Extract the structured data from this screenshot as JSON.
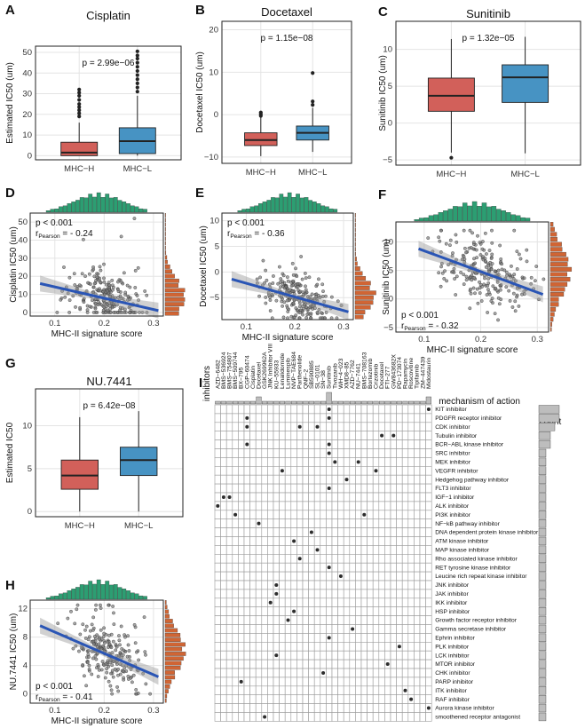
{
  "colors": {
    "h": "#d2605a",
    "l": "#4793c3",
    "hist_top": "#2c9e72",
    "hist_side": "#d06534",
    "fit": "#2a55b5",
    "dot": "#2d2d2d",
    "point": "#808080"
  },
  "panels": {
    "A": {
      "label": "A",
      "title": "Cisplatin",
      "ylabel": "Estimated IC50 (um)",
      "pvalue": "p = 2.99e−06",
      "yticks": [
        "0",
        "10",
        "20",
        "30",
        "40",
        "50"
      ],
      "ymin": -2,
      "ymax": 53,
      "groups": [
        {
          "label": "MHC−H",
          "q1": 0,
          "median": 1.5,
          "q3": 6.5,
          "lo": 0,
          "hi": 16,
          "out": [
            19,
            20.5,
            22,
            23.5,
            25,
            27,
            29,
            30.5,
            32
          ]
        },
        {
          "label": "MHC−L",
          "q1": 1,
          "median": 7,
          "q3": 13.5,
          "lo": 0,
          "hi": 29,
          "out": [
            31,
            33,
            35,
            37,
            39,
            41,
            43,
            45,
            47,
            48.5,
            50.5
          ]
        }
      ]
    },
    "B": {
      "label": "B",
      "title": "Docetaxel",
      "ylabel": "Docetaxel IC50 (um)",
      "pvalue": "p = 1.15e−08",
      "yticks": [
        "−10",
        "0",
        "10",
        "20"
      ],
      "ymin": -11.5,
      "ymax": 22,
      "groups": [
        {
          "label": "MHC−H",
          "q1": -7.3,
          "median": -6,
          "q3": -4.3,
          "lo": -9.8,
          "hi": -0.6,
          "out": [
            -0.3,
            0.1,
            0.5
          ]
        },
        {
          "label": "MHC−L",
          "q1": -6,
          "median": -4.3,
          "q3": -2.7,
          "lo": -8.8,
          "hi": 1.6,
          "out": [
            2.3,
            3.1,
            9.8
          ]
        }
      ]
    },
    "C": {
      "label": "C",
      "title": "Sunitinib",
      "ylabel": "Sunitinib IC50 (um)",
      "pvalue": "p = 1.32e−05",
      "yticks": [
        "−5",
        "0",
        "5",
        "10"
      ],
      "ymin": -5.7,
      "ymax": 13.8,
      "groups": [
        {
          "label": "MHC−H",
          "q1": 1.6,
          "median": 3.7,
          "q3": 6.1,
          "lo": -4,
          "hi": 11.4,
          "out": [
            -4.7
          ]
        },
        {
          "label": "MHC−L",
          "q1": 2.8,
          "median": 6.2,
          "q3": 7.9,
          "lo": -4.1,
          "hi": 11.7,
          "out": []
        }
      ]
    },
    "G": {
      "label": "G",
      "title": "NU.7441",
      "ylabel": "Estimated IC50",
      "pvalue": "p = 6.42e−08",
      "yticks": [
        "0",
        "5",
        "10"
      ],
      "ymin": -0.6,
      "ymax": 14.3,
      "groups": [
        {
          "label": "MHC−H",
          "q1": 2.6,
          "median": 4.2,
          "q3": 6,
          "lo": 0,
          "hi": 11,
          "out": []
        },
        {
          "label": "MHC−L",
          "q1": 4.2,
          "median": 6,
          "q3": 7.5,
          "lo": 0,
          "hi": 11.7,
          "out": []
        }
      ]
    },
    "D": {
      "label": "D",
      "ylabel": "Cisplatin IC50 (um)",
      "xlabel": "MHC-II signature score",
      "stat_p": "p < 0.001",
      "stat_r": "r",
      "stat_r_sub": "Pearson",
      "stat_r_val": " = - 0.24",
      "xticks": [
        "0.1",
        "0.2",
        "0.3"
      ],
      "yticks": [
        "0",
        "10",
        "20",
        "30",
        "40",
        "50"
      ],
      "xmin": 0.05,
      "xmax": 0.32,
      "ymin": -2,
      "ymax": 55,
      "fit": {
        "x0": 0.07,
        "y0": 16,
        "x1": 0.31,
        "y1": 1
      },
      "spread": {
        "mean": 6,
        "sd": 7,
        "min": 0,
        "max": 52
      },
      "stat_corner": "top"
    },
    "E": {
      "label": "E",
      "ylabel": "Docetaxel IC50 (um)",
      "xlabel": "MHC-II signature score",
      "stat_p": "p < 0.001",
      "stat_r": "r",
      "stat_r_sub": "Pearson",
      "stat_r_val": " = - 0.36",
      "xticks": [
        "0.1",
        "0.2",
        "0.3"
      ],
      "yticks": [
        "−5",
        "0",
        "5",
        "10"
      ],
      "xmin": 0.05,
      "xmax": 0.32,
      "ymin": -9.3,
      "ymax": 11.5,
      "fit": {
        "x0": 0.07,
        "y0": -1.4,
        "x1": 0.31,
        "y1": -7.8
      },
      "spread": {
        "mean": 0,
        "sd": 2.2,
        "min": -9,
        "max": 10
      },
      "stat_corner": "top"
    },
    "F": {
      "label": "F",
      "ylabel": "Sunitinib IC50 (um)",
      "xlabel": "MHC-II signature score",
      "stat_p": "p < 0.001",
      "stat_r": "r",
      "stat_r_sub": "Pearson",
      "stat_r_val": " = - 0.32",
      "xticks": [
        "0.1",
        "0.2",
        "0.3"
      ],
      "yticks": [
        "−5",
        "0",
        "5",
        "10"
      ],
      "xmin": 0.05,
      "xmax": 0.32,
      "ymin": -5.8,
      "ymax": 13.5,
      "fit": {
        "x0": 0.09,
        "y0": 8.8,
        "x1": 0.31,
        "y1": 0.8
      },
      "spread": {
        "mean": 0,
        "sd": 3,
        "min": -5,
        "max": 12
      },
      "stat_corner": "bottom"
    },
    "H": {
      "label": "H",
      "ylabel": "NU.7441 IC50 (um)",
      "xlabel": "MHC-II signature score",
      "stat_p": "p < 0.001",
      "stat_r": "r",
      "stat_r_sub": "Pearson",
      "stat_r_val": " = - 0.41",
      "xticks": [
        "0.1",
        "0.2",
        "0.3"
      ],
      "yticks": [
        "0",
        "4",
        "8",
        "12"
      ],
      "xmin": 0.05,
      "xmax": 0.32,
      "ymin": -1.3,
      "ymax": 13.2,
      "fit": {
        "x0": 0.07,
        "y0": 9.6,
        "x1": 0.31,
        "y1": 2.4
      },
      "spread": {
        "mean": 0,
        "sd": 2.1,
        "min": 0,
        "max": 12.5
      },
      "stat_corner": "bottom"
    }
  },
  "panel_I": {
    "label": "I",
    "axis_label": "inhibitors",
    "legend_title": "mechanism of action",
    "count_label": "count",
    "drugs": [
      "AZD−6482",
      "BMS−536924",
      "BMS−754807",
      "BMS−509744",
      "BX−795",
      "CGP−60474",
      "Cisplatin",
      "Docetaxel",
      "GSK269962A",
      "JNK Inhibitor VIII",
      "KU−55933",
      "Lenalidomide",
      "Luminespib",
      "NVP−TAE684",
      "Parthenolide",
      "QNF−2",
      "SB590885",
      "SL−0101",
      "SN−38",
      "Sunitinib",
      "Tivozanib",
      "WH−4−023",
      "XMD8−85",
      "AZD−7762",
      "NU−7441",
      "BMS−708163",
      "Bortezomib",
      "Crizotinib",
      "Docetaxel",
      "FTI−277",
      "GW843682X",
      "PD−173074",
      "Rapamycin",
      "Roscovitine",
      "Tipifarnib",
      "ZM−447439",
      "Midostaurin"
    ],
    "drug_counts": [
      1,
      1,
      1,
      1,
      1,
      1,
      1,
      2,
      1,
      1,
      1,
      1,
      1,
      1,
      1,
      1,
      1,
      1,
      1,
      3,
      1,
      1,
      1,
      1,
      1,
      1,
      1,
      1,
      1,
      1,
      1,
      1,
      1,
      1,
      1,
      1,
      2
    ],
    "mechanisms": [
      "KIT inhibitor",
      "PDGFR receptor inhibitor",
      "CDK inhibitor",
      "Tubulin inhibitor",
      "BCR−ABL kinase inhibitor",
      "SRC inhibitor",
      "MEK inhibitor",
      "VEGFR inhibitor",
      "Hedgehog pathway inhibitor",
      "FLT3 inhibitor",
      "IGF−1 inhibitor",
      "ALK inhibitor",
      "PI3K inhibitor",
      "NF−kB pathway inhibitor",
      "DNA dependent protein kinase inhibitor",
      "ATM kinase inhibitor",
      "MAP kinase inhibitor",
      "Rho associated kinase inhibitor",
      "RET tyrosine kinase inhibitor",
      "Leucine rich repeat kinase inhibitor",
      "JNK inhibitor",
      "JAK inhibitor",
      "IKK inhibitor",
      "HSP inhibitor",
      "Growth factor receptor inhibitor",
      "Gamma secretase inhibitor",
      "Ephrin inhibitor",
      "PLK inhibitor",
      "LCK inhibitor",
      "MTOR inhibitor",
      "CHK inhibitor",
      "PARP inhibitor",
      "ITK inhibitor",
      "RAF inhibitor",
      "Aurora kinase inhibitor",
      "smoothened receptor antagonist"
    ],
    "mech_counts": [
      4,
      4,
      3,
      2,
      2,
      1,
      1,
      1,
      1,
      1,
      1,
      1,
      1,
      1,
      1,
      1,
      1,
      1,
      1,
      1,
      1,
      1,
      1,
      1,
      1,
      1,
      1,
      1,
      1,
      1,
      1,
      1,
      1,
      1,
      1,
      1
    ],
    "links": [
      [
        0,
        36
      ],
      [
        0,
        19
      ],
      [
        1,
        19
      ],
      [
        1,
        5
      ],
      [
        2,
        5
      ],
      [
        2,
        14
      ],
      [
        2,
        17
      ],
      [
        3,
        28
      ],
      [
        3,
        30
      ],
      [
        4,
        5
      ],
      [
        4,
        19
      ],
      [
        5,
        19
      ],
      [
        6,
        20
      ],
      [
        6,
        24
      ],
      [
        7,
        11
      ],
      [
        7,
        27
      ],
      [
        8,
        22
      ],
      [
        9,
        19
      ],
      [
        10,
        1
      ],
      [
        10,
        2
      ],
      [
        11,
        0
      ],
      [
        12,
        3
      ],
      [
        12,
        25
      ],
      [
        13,
        7
      ],
      [
        14,
        16
      ],
      [
        15,
        13
      ],
      [
        16,
        17
      ],
      [
        17,
        14
      ],
      [
        18,
        19
      ],
      [
        19,
        21
      ],
      [
        20,
        10
      ],
      [
        21,
        10
      ],
      [
        22,
        9
      ],
      [
        23,
        13
      ],
      [
        24,
        12
      ],
      [
        25,
        23
      ],
      [
        26,
        19
      ],
      [
        27,
        31
      ],
      [
        28,
        10
      ],
      [
        29,
        29
      ],
      [
        30,
        18
      ],
      [
        31,
        4
      ],
      [
        32,
        32
      ],
      [
        33,
        33
      ],
      [
        34,
        36
      ],
      [
        35,
        8
      ]
    ]
  },
  "chart_data": [
    {
      "type": "box",
      "title": "Cisplatin",
      "ylabel": "Estimated IC50 (um)",
      "categories": [
        "MHC−H",
        "MHC−L"
      ],
      "median": [
        1.5,
        7
      ],
      "q1": [
        0,
        1
      ],
      "q3": [
        6.5,
        13.5
      ],
      "annotation": "p = 2.99e−06"
    },
    {
      "type": "box",
      "title": "Docetaxel",
      "ylabel": "Docetaxel IC50 (um)",
      "categories": [
        "MHC−H",
        "MHC−L"
      ],
      "median": [
        -6,
        -4.3
      ],
      "q1": [
        -7.3,
        -6
      ],
      "q3": [
        -4.3,
        -2.7
      ],
      "annotation": "p = 1.15e−08"
    },
    {
      "type": "box",
      "title": "Sunitinib",
      "ylabel": "Sunitinib IC50 (um)",
      "categories": [
        "MHC−H",
        "MHC−L"
      ],
      "median": [
        3.7,
        6.2
      ],
      "q1": [
        1.6,
        2.8
      ],
      "q3": [
        6.1,
        7.9
      ],
      "annotation": "p = 1.32e−05"
    },
    {
      "type": "scatter",
      "ylabel": "Cisplatin IC50 (um)",
      "xlabel": "MHC-II signature score",
      "fit": [
        [
          0.07,
          16
        ],
        [
          0.31,
          1
        ]
      ],
      "annotation": "r Pearson = - 0.24"
    },
    {
      "type": "scatter",
      "ylabel": "Docetaxel IC50 (um)",
      "xlabel": "MHC-II signature score",
      "fit": [
        [
          0.07,
          -1.4
        ],
        [
          0.31,
          -7.8
        ]
      ],
      "annotation": "r Pearson = - 0.36"
    },
    {
      "type": "scatter",
      "ylabel": "Sunitinib IC50 (um)",
      "xlabel": "MHC-II signature score",
      "fit": [
        [
          0.09,
          8.8
        ],
        [
          0.31,
          0.8
        ]
      ],
      "annotation": "r Pearson = - 0.32"
    },
    {
      "type": "box",
      "title": "NU.7441",
      "ylabel": "Estimated IC50",
      "categories": [
        "MHC−H",
        "MHC−L"
      ],
      "median": [
        4.2,
        6
      ],
      "q1": [
        2.6,
        4.2
      ],
      "q3": [
        6,
        7.5
      ],
      "annotation": "p = 6.42e−08"
    },
    {
      "type": "scatter",
      "ylabel": "NU.7441 IC50 (um)",
      "xlabel": "MHC-II signature score",
      "fit": [
        [
          0.07,
          9.6
        ],
        [
          0.31,
          2.4
        ]
      ],
      "annotation": "r Pearson = - 0.41"
    },
    {
      "type": "heatmap",
      "title": "mechanism of action",
      "xlabel": "inhibitors"
    }
  ]
}
